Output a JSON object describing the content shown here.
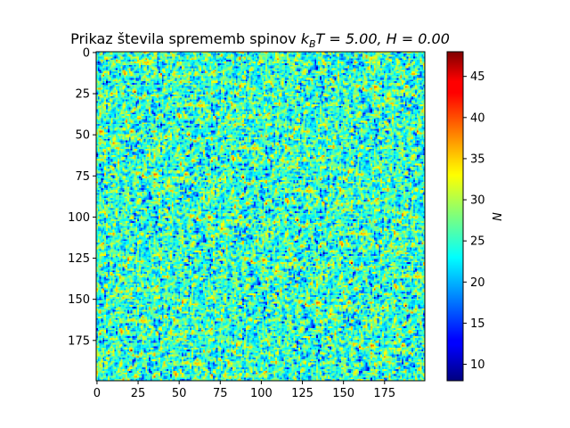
{
  "chart_data": {
    "type": "heatmap",
    "title": "Prikaz števila sprememb spinov k_B T = 5.00, H = 0.00",
    "title_parts": {
      "prefix": "Prikaz števila sprememb spinov ",
      "k": "k",
      "sub": "B",
      "rest": "T = 5.00, H = 0.00"
    },
    "grid_size": [
      200,
      200
    ],
    "xlim": [
      0,
      199
    ],
    "ylim": [
      199,
      0
    ],
    "x_ticks": [
      "0",
      "25",
      "50",
      "75",
      "100",
      "125",
      "150",
      "175"
    ],
    "y_ticks": [
      "0",
      "25",
      "50",
      "75",
      "100",
      "125",
      "150",
      "175"
    ],
    "x_tick_values": [
      0,
      25,
      50,
      75,
      100,
      125,
      150,
      175
    ],
    "y_tick_values": [
      0,
      25,
      50,
      75,
      100,
      125,
      150,
      175
    ],
    "colormap": "jet",
    "colorbar": {
      "label": "N",
      "min": 8,
      "max": 48,
      "ticks": [
        "10",
        "15",
        "20",
        "25",
        "30",
        "35",
        "40",
        "45"
      ],
      "tick_values": [
        10,
        15,
        20,
        25,
        30,
        35,
        40,
        45
      ]
    },
    "value_distribution": {
      "mean": 25,
      "std": 4.5,
      "typical_range": [
        14,
        36
      ]
    }
  }
}
